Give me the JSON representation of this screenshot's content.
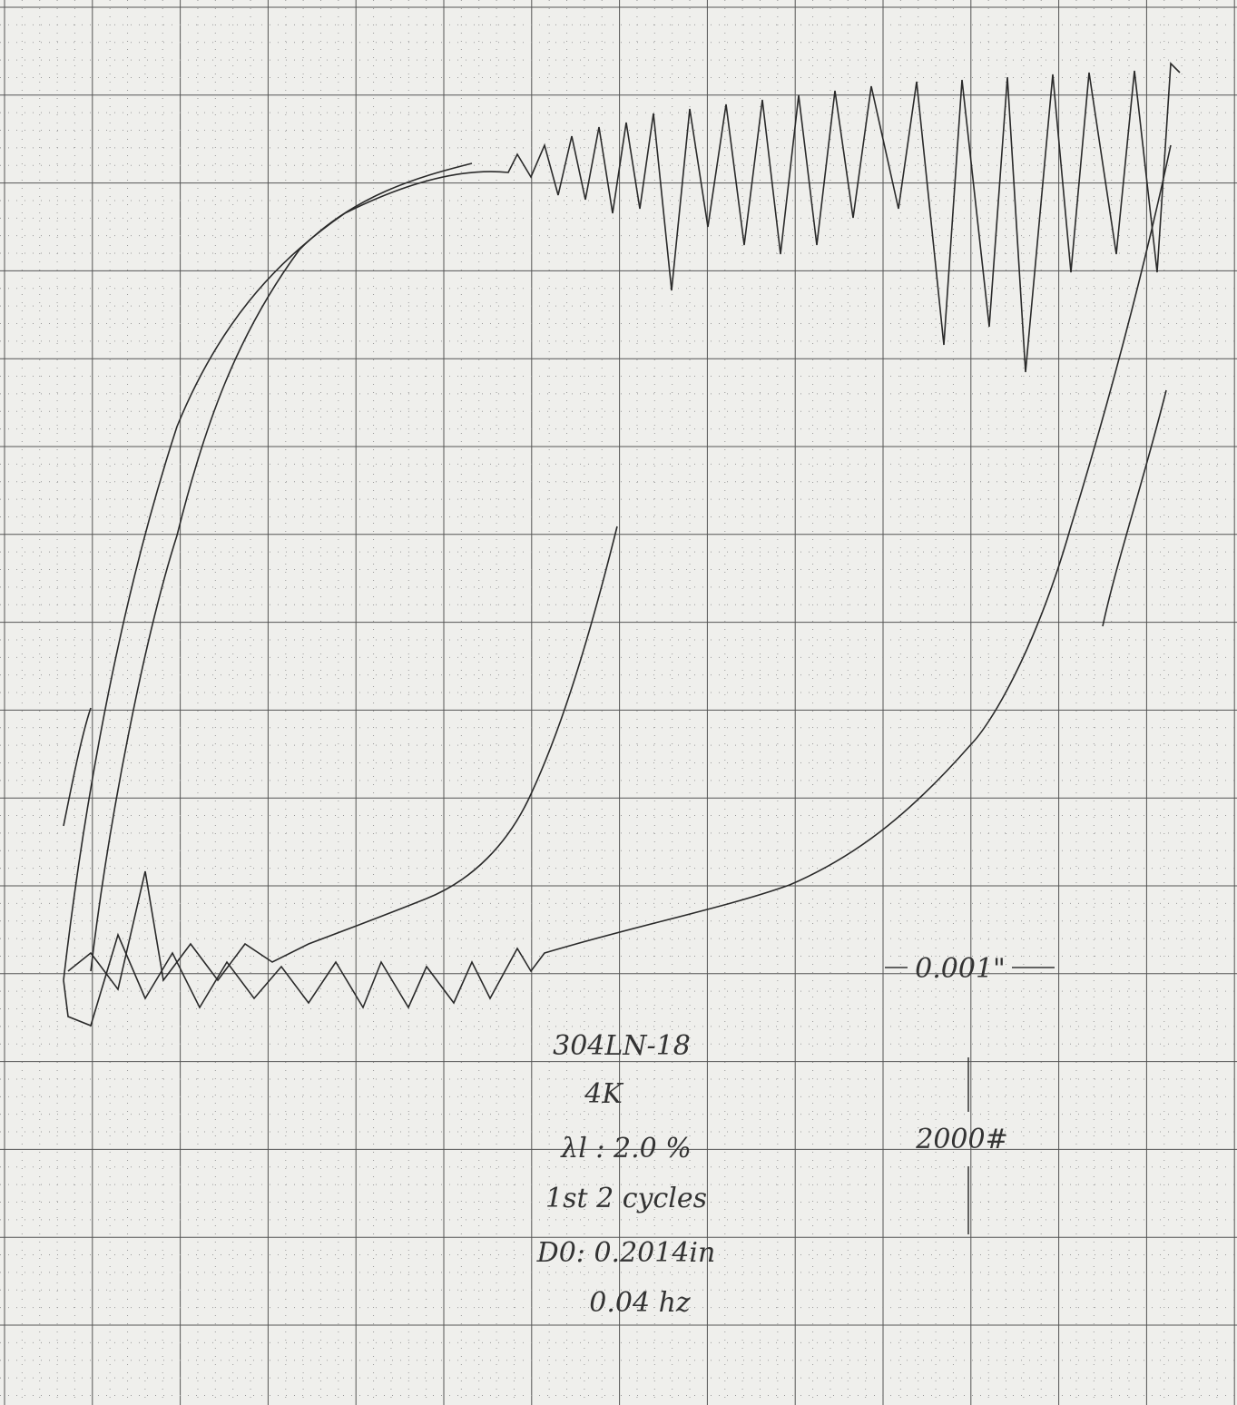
{
  "scale": {
    "x_label": "0.001\"",
    "y_label": "2000#"
  },
  "specimen": {
    "lines": [
      "304LN-18",
      "4K",
      "λl : 2.0 %",
      "1st 2 cycles",
      "D0: 0.2014in",
      "0.04 hz"
    ]
  }
}
